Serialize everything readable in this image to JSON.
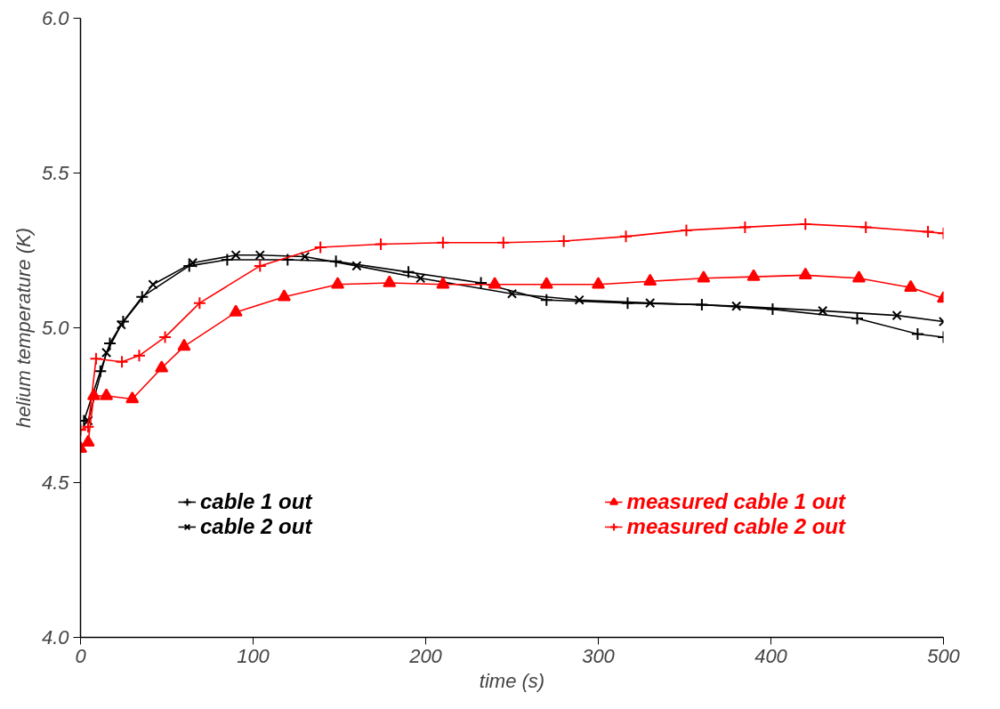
{
  "chart_data": {
    "type": "line",
    "xlabel": "time (s)",
    "ylabel": "helium temperature (K)",
    "xlim": [
      0,
      500
    ],
    "ylim": [
      4.0,
      6.0
    ],
    "xticks": [
      0,
      100,
      200,
      300,
      400,
      500
    ],
    "yticks": [
      {
        "value": 4.0,
        "label": "4.0"
      },
      {
        "value": 4.5,
        "label": "4.5"
      },
      {
        "value": 5.0,
        "label": "5.0"
      },
      {
        "value": 5.5,
        "label": "5.5"
      },
      {
        "value": 6.0,
        "label": "6.0"
      }
    ],
    "grid": false,
    "legend": "bottom",
    "line_style": "solid",
    "series": [
      {
        "name": "cable 1 out",
        "color": "#000000",
        "marker": "cross",
        "x": [
          2,
          11.5,
          17,
          24.7,
          35.7,
          63,
          85,
          120,
          148,
          190,
          232,
          270,
          317,
          360,
          401,
          450,
          485,
          500
        ],
        "values": [
          4.7,
          4.86,
          4.95,
          5.02,
          5.1,
          5.2,
          5.22,
          5.22,
          5.215,
          5.18,
          5.145,
          5.09,
          5.08,
          5.075,
          5.06,
          5.03,
          4.98,
          4.97
        ]
      },
      {
        "name": "cable 2 out",
        "color": "#000000",
        "marker": "x",
        "x": [
          4.4,
          15,
          23.6,
          42,
          65,
          90,
          104,
          130,
          160,
          197,
          250,
          289,
          330,
          380,
          430,
          473,
          500
        ],
        "values": [
          4.7,
          4.92,
          5.01,
          5.14,
          5.21,
          5.235,
          5.235,
          5.23,
          5.2,
          5.16,
          5.11,
          5.09,
          5.08,
          5.07,
          5.055,
          5.04,
          5.02
        ]
      },
      {
        "name": "measured cable 1 out",
        "color": "#ff0000",
        "marker": "triangle",
        "x": [
          0,
          4.4,
          7.7,
          15,
          30,
          47,
          60,
          90,
          118,
          149,
          179,
          210,
          240,
          270,
          300,
          330,
          361,
          390,
          420,
          451,
          481,
          500
        ],
        "values": [
          4.61,
          4.63,
          4.78,
          4.78,
          4.77,
          4.87,
          4.94,
          5.05,
          5.1,
          5.14,
          5.145,
          5.14,
          5.14,
          5.14,
          5.14,
          5.15,
          5.16,
          5.165,
          5.17,
          5.16,
          5.13,
          5.095
        ]
      },
      {
        "name": "measured cable 2 out",
        "color": "#ff0000",
        "marker": "cross",
        "x": [
          0,
          4.4,
          9,
          24,
          34,
          49,
          69,
          104,
          139,
          174,
          210,
          245,
          280,
          316,
          351,
          385,
          420,
          455,
          491,
          500
        ],
        "values": [
          4.67,
          4.68,
          4.9,
          4.89,
          4.91,
          4.97,
          5.08,
          5.2,
          5.26,
          5.27,
          5.275,
          5.275,
          5.28,
          5.295,
          5.315,
          5.325,
          5.335,
          5.325,
          5.31,
          5.305
        ]
      }
    ]
  }
}
